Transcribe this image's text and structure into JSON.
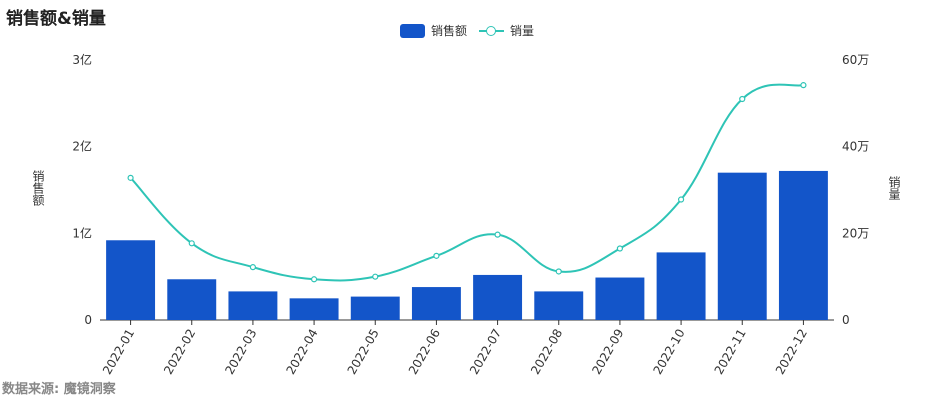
{
  "title": "销售额&销量",
  "source": "数据来源: 魔镜洞察",
  "colors": {
    "bar": "#1355c9",
    "line": "#2ec4b6",
    "axis": "#333333"
  },
  "chart_data": {
    "type": "bar",
    "categories": [
      "2022-01",
      "2022-02",
      "2022-03",
      "2022-04",
      "2022-05",
      "2022-06",
      "2022-07",
      "2022-08",
      "2022-09",
      "2022-10",
      "2022-11",
      "2022-12"
    ],
    "series": [
      {
        "name": "销售额",
        "type": "bar",
        "axis": "left",
        "values": [
          92000000,
          47000000,
          33000000,
          25000000,
          27000000,
          38000000,
          52000000,
          33000000,
          49000000,
          78000000,
          170000000,
          172000000
        ]
      },
      {
        "name": "销量",
        "type": "line",
        "axis": "right",
        "smooth": true,
        "values": [
          328000,
          177000,
          122000,
          94000,
          100000,
          148000,
          197000,
          112000,
          165000,
          278000,
          510000,
          542000
        ]
      }
    ],
    "y_left": {
      "label": "销售额",
      "ylim": [
        0,
        300000000
      ],
      "ticks": [
        0,
        100000000,
        200000000,
        300000000
      ],
      "tick_labels": [
        "0",
        "1亿",
        "2亿",
        "3亿"
      ]
    },
    "y_right": {
      "label": "销量",
      "ylim": [
        0,
        600000
      ],
      "ticks": [
        0,
        200000,
        400000,
        600000
      ],
      "tick_labels": [
        "0",
        "20万",
        "40万",
        "60万"
      ]
    },
    "grid": false,
    "legend": "top-center"
  }
}
